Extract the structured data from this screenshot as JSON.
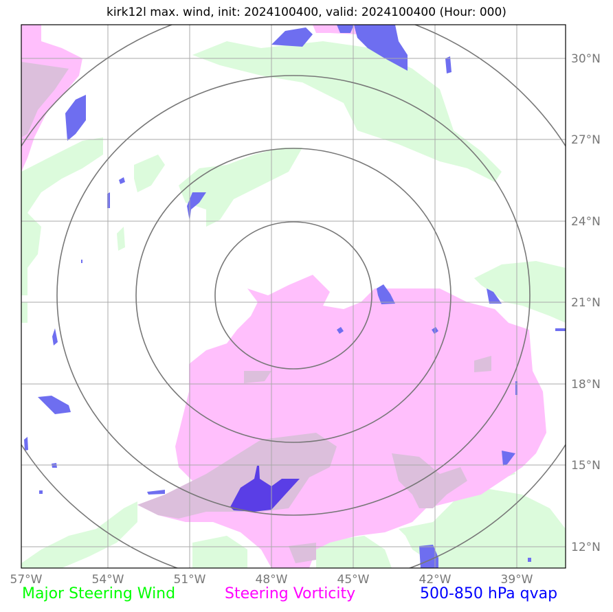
{
  "title": "kirk12l max. wind, init: 2024100400, valid: 2024100400 (Hour: 000)",
  "lat_labels": [
    "30°N",
    "27°N",
    "24°N",
    "21°N",
    "18°N",
    "15°N",
    "12°N"
  ],
  "lon_labels": [
    "57°W",
    "54°W",
    "51°W",
    "48°W",
    "45°W",
    "42°W",
    "39°W"
  ],
  "legend": {
    "wind": "Major Steering Wind",
    "vorticity": "Steering Vorticity",
    "qvap": "500-850 hPa qvap"
  },
  "colors": {
    "wind": "#00ff00",
    "vorticity": "#ff00ff",
    "qvap": "#0000ff",
    "wind_fill": "#dcfbdc",
    "vorticity_fill": "#ffbffc",
    "overlap_fill": "#dcbfdc",
    "qvap_fill": "#6e6ef0",
    "qvap_dark": "#5a3ee6",
    "grid": "#aaaaaa",
    "rings": "#777777"
  }
}
